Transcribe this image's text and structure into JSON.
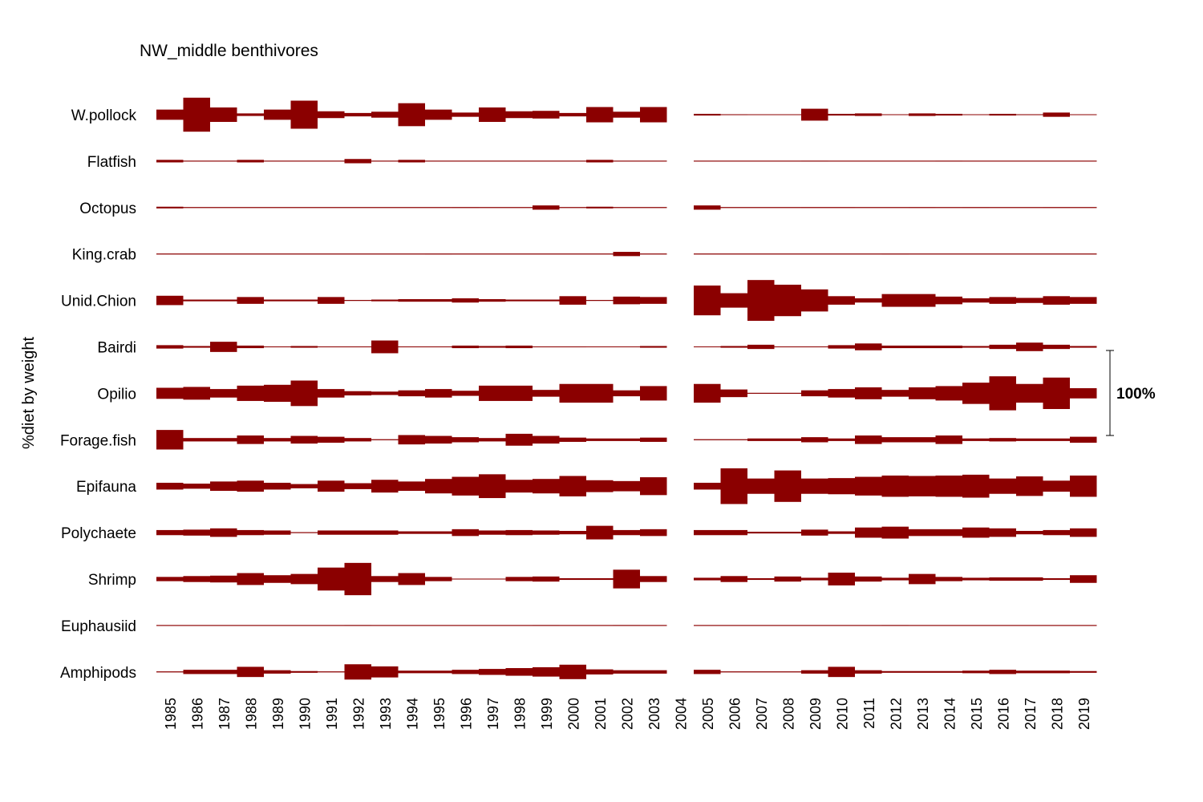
{
  "chart_data": {
    "type": "kite",
    "title": "NW_middle benthivores",
    "ylabel": "%diet by weight",
    "scale_label": "100%",
    "bar_color": "#8b0000",
    "years": [
      "1985",
      "1986",
      "1987",
      "1988",
      "1989",
      "1990",
      "1991",
      "1992",
      "1993",
      "1994",
      "1995",
      "1996",
      "1997",
      "1998",
      "1999",
      "2000",
      "2001",
      "2002",
      "2003",
      "2004",
      "2005",
      "2006",
      "2007",
      "2008",
      "2009",
      "2010",
      "2011",
      "2012",
      "2013",
      "2014",
      "2015",
      "2016",
      "2017",
      "2018",
      "2019"
    ],
    "prey": [
      "W.pollock",
      "Flatfish",
      "Octopus",
      "King.crab",
      "Unid.Chion",
      "Bairdi",
      "Opilio",
      "Forage.fish",
      "Epifauna",
      "Polychaete",
      "Shrimp",
      "Euphausiid",
      "Amphipods"
    ],
    "values": [
      [
        12,
        40,
        17,
        3,
        12,
        33,
        8,
        4,
        7,
        27,
        12,
        5,
        17,
        8,
        9,
        4,
        18,
        7,
        18,
        null,
        2,
        1,
        0.5,
        0.5,
        14,
        2,
        3,
        0.5,
        3,
        2,
        0.5,
        2,
        1,
        5,
        0.5
      ],
      [
        3,
        0.5,
        0.5,
        3,
        0.5,
        0.5,
        0.5,
        5,
        0.5,
        3,
        0.5,
        0.5,
        0.5,
        0.5,
        0.5,
        0.5,
        3,
        0.5,
        0.5,
        null,
        0.5,
        0.5,
        0.5,
        0.5,
        1,
        0.5,
        0.5,
        0.5,
        0.5,
        1,
        0.5,
        0.5,
        0.5,
        0.5,
        0.5
      ],
      [
        2,
        0.5,
        0.5,
        0.5,
        0.5,
        0.5,
        0.5,
        0.5,
        0.5,
        0.5,
        0.5,
        1,
        0.5,
        0.5,
        5,
        0.5,
        2,
        0.5,
        0.5,
        null,
        5,
        0.5,
        0.5,
        0.5,
        1,
        1,
        0.5,
        0.5,
        1,
        0.5,
        1,
        0.5,
        0.5,
        1,
        0.5
      ],
      [
        0.5,
        0.5,
        0.5,
        0.5,
        0.5,
        0.5,
        0.5,
        0.5,
        0.5,
        0.5,
        1,
        0.5,
        0.5,
        0.5,
        0.5,
        0.5,
        0.5,
        5,
        0.5,
        null,
        0.5,
        0.5,
        0.5,
        0.5,
        0.5,
        0.5,
        0.5,
        1,
        0.5,
        0.5,
        0.5,
        0.5,
        0.5,
        0.5,
        0.5
      ],
      [
        11,
        2,
        2,
        8,
        2,
        2,
        8,
        1,
        2,
        3,
        3,
        5,
        3,
        2,
        2,
        10,
        1,
        9,
        8,
        null,
        35,
        17,
        48,
        37,
        26,
        10,
        5,
        15,
        15,
        9,
        5,
        8,
        6,
        10,
        8
      ],
      [
        4,
        2,
        12,
        3,
        1,
        2,
        1,
        1,
        15,
        1,
        1,
        3,
        2,
        3,
        1,
        1,
        0.5,
        0.5,
        2,
        null,
        0.5,
        2,
        5,
        1,
        1,
        4,
        8,
        3,
        3,
        3,
        2,
        5,
        10,
        5,
        2
      ],
      [
        13,
        15,
        10,
        18,
        20,
        30,
        10,
        5,
        4,
        7,
        10,
        6,
        18,
        18,
        8,
        22,
        22,
        7,
        17,
        null,
        22,
        9,
        1,
        1,
        7,
        10,
        14,
        8,
        14,
        17,
        25,
        40,
        22,
        37,
        12
      ],
      [
        23,
        4,
        4,
        10,
        4,
        9,
        7,
        4,
        1,
        11,
        9,
        6,
        4,
        14,
        9,
        5,
        3,
        3,
        5,
        null,
        1,
        1,
        3,
        3,
        6,
        3,
        10,
        6,
        6,
        10,
        3,
        4,
        3,
        3,
        7
      ],
      [
        8,
        6,
        11,
        13,
        8,
        5,
        13,
        7,
        15,
        11,
        17,
        22,
        28,
        15,
        17,
        24,
        14,
        12,
        21,
        null,
        8,
        42,
        18,
        37,
        18,
        19,
        22,
        25,
        24,
        25,
        27,
        18,
        23,
        13,
        25
      ],
      [
        6,
        7,
        10,
        6,
        5,
        1,
        5,
        5,
        5,
        3,
        3,
        8,
        5,
        6,
        5,
        4,
        16,
        6,
        8,
        null,
        6,
        6,
        2,
        2,
        7,
        3,
        12,
        14,
        8,
        8,
        12,
        10,
        4,
        6,
        10
      ],
      [
        5,
        7,
        8,
        14,
        9,
        12,
        27,
        38,
        7,
        14,
        5,
        1,
        1,
        5,
        6,
        2,
        2,
        22,
        7,
        null,
        3,
        7,
        2,
        6,
        3,
        15,
        6,
        3,
        12,
        5,
        3,
        4,
        4,
        2,
        9
      ],
      [
        0.5,
        0.5,
        0.5,
        0.5,
        0.5,
        0.5,
        0.5,
        1,
        0.5,
        0.5,
        0.5,
        0.5,
        0.5,
        0.5,
        1,
        0.5,
        0.5,
        1,
        0.5,
        null,
        0.5,
        0.5,
        0.5,
        0.5,
        0.5,
        0.5,
        0.5,
        1,
        0.5,
        0.5,
        0.5,
        0.5,
        0.5,
        0.5,
        0.5
      ],
      [
        1,
        5,
        5,
        12,
        4,
        2,
        1,
        18,
        13,
        3,
        3,
        5,
        7,
        9,
        11,
        17,
        6,
        4,
        4,
        null,
        5,
        1,
        1,
        1,
        4,
        12,
        4,
        2,
        2,
        2,
        3,
        5,
        3,
        3,
        2
      ]
    ]
  }
}
